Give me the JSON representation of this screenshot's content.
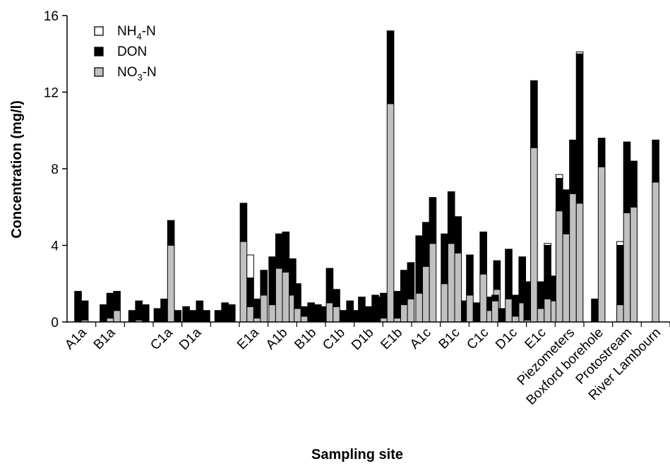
{
  "chart_data": {
    "type": "bar",
    "stacked": true,
    "xlabel": "Sampling site",
    "ylabel": "Concentration (mg/l)",
    "ylim": [
      0,
      16
    ],
    "yticks": [
      0,
      4,
      8,
      12,
      16
    ],
    "grid": false,
    "legend_position": "top-left",
    "legend": [
      {
        "key": "nh4",
        "text": "NH",
        "sub": "4",
        "suffix": "-N",
        "color": "#ffffff"
      },
      {
        "key": "don",
        "text": "DON",
        "sub": "",
        "suffix": "",
        "color": "#000000"
      },
      {
        "key": "no3",
        "text": "NO",
        "sub": "3",
        "suffix": "-N",
        "color": "#c0c0c0"
      }
    ],
    "groups": [
      {
        "label": "A1a",
        "bars": [
          {
            "no3": 0.0,
            "don": 1.6,
            "nh4": 0
          },
          {
            "no3": 0.1,
            "don": 1.0,
            "nh4": 0
          }
        ]
      },
      {
        "label": "B1a",
        "bars": [
          {
            "no3": 0.0,
            "don": 0.9,
            "nh4": 0
          },
          {
            "no3": 0.2,
            "don": 1.3,
            "nh4": 0
          },
          {
            "no3": 0.6,
            "don": 1.0,
            "nh4": 0
          }
        ]
      },
      {
        "label": "",
        "bars": [
          {
            "no3": 0.0,
            "don": 0.6,
            "nh4": 0
          },
          {
            "no3": 0.1,
            "don": 1.0,
            "nh4": 0
          },
          {
            "no3": 0.0,
            "don": 0.9,
            "nh4": 0
          }
        ]
      },
      {
        "label": "C1a",
        "bars": [
          {
            "no3": 0.0,
            "don": 0.7,
            "nh4": 0
          },
          {
            "no3": 0.0,
            "don": 1.2,
            "nh4": 0
          },
          {
            "no3": 4.0,
            "don": 1.3,
            "nh4": 0
          },
          {
            "no3": 0.0,
            "don": 0.6,
            "nh4": 0
          }
        ]
      },
      {
        "label": "D1a",
        "bars": [
          {
            "no3": 0.0,
            "don": 0.8,
            "nh4": 0
          },
          {
            "no3": 0.0,
            "don": 0.6,
            "nh4": 0
          },
          {
            "no3": 0.0,
            "don": 1.1,
            "nh4": 0
          },
          {
            "no3": 0.0,
            "don": 0.6,
            "nh4": 0
          }
        ]
      },
      {
        "label": "",
        "bars": [
          {
            "no3": 0.0,
            "don": 0.6,
            "nh4": 0
          },
          {
            "no3": 0.0,
            "don": 1.0,
            "nh4": 0
          },
          {
            "no3": 0.0,
            "don": 0.9,
            "nh4": 0
          }
        ]
      },
      {
        "label": "E1a",
        "bars": [
          {
            "no3": 4.2,
            "don": 2.0,
            "nh4": 0
          },
          {
            "no3": 0.8,
            "don": 1.5,
            "nh4": 1.2
          },
          {
            "no3": 0.2,
            "don": 1.0,
            "nh4": 0
          },
          {
            "no3": 1.4,
            "don": 1.3,
            "nh4": 0
          }
        ]
      },
      {
        "label": "A1b",
        "bars": [
          {
            "no3": 0.9,
            "don": 2.5,
            "nh4": 0
          },
          {
            "no3": 2.8,
            "don": 1.8,
            "nh4": 0
          },
          {
            "no3": 2.6,
            "don": 2.1,
            "nh4": 0
          },
          {
            "no3": 1.4,
            "don": 1.9,
            "nh4": 0
          }
        ]
      },
      {
        "label": "B1b",
        "bars": [
          {
            "no3": 0.7,
            "don": 1.3,
            "nh4": 0
          },
          {
            "no3": 0.3,
            "don": 0.5,
            "nh4": 0
          },
          {
            "no3": 0.0,
            "don": 1.0,
            "nh4": 0
          },
          {
            "no3": 0.0,
            "don": 0.9,
            "nh4": 0
          },
          {
            "no3": 0.0,
            "don": 0.8,
            "nh4": 0
          }
        ]
      },
      {
        "label": "C1b",
        "bars": [
          {
            "no3": 1.0,
            "don": 1.8,
            "nh4": 0
          },
          {
            "no3": 0.8,
            "don": 0.9,
            "nh4": 0
          },
          {
            "no3": 0.0,
            "don": 0.6,
            "nh4": 0
          },
          {
            "no3": 0.0,
            "don": 1.1,
            "nh4": 0
          }
        ]
      },
      {
        "label": "D1b",
        "bars": [
          {
            "no3": 0.0,
            "don": 0.6,
            "nh4": 0
          },
          {
            "no3": 0.0,
            "don": 1.3,
            "nh4": 0
          },
          {
            "no3": 0.0,
            "don": 0.8,
            "nh4": 0
          },
          {
            "no3": 0.0,
            "don": 1.4,
            "nh4": 0
          },
          {
            "no3": 0.0,
            "don": 1.3,
            "nh4": 0
          }
        ]
      },
      {
        "label": "E1b",
        "bars": [
          {
            "no3": 0.2,
            "don": 1.3,
            "nh4": 0
          },
          {
            "no3": 11.4,
            "don": 3.8,
            "nh4": 0
          },
          {
            "no3": 0.2,
            "don": 1.4,
            "nh4": 0
          },
          {
            "no3": 0.9,
            "don": 1.8,
            "nh4": 0
          },
          {
            "no3": 1.2,
            "don": 1.9,
            "nh4": 0
          }
        ]
      },
      {
        "label": "A1c",
        "bars": [
          {
            "no3": 1.5,
            "don": 3.0,
            "nh4": 0
          },
          {
            "no3": 2.9,
            "don": 2.3,
            "nh4": 0
          },
          {
            "no3": 4.1,
            "don": 2.4,
            "nh4": 0
          }
        ]
      },
      {
        "label": "B1c",
        "bars": [
          {
            "no3": 2.0,
            "don": 2.6,
            "nh4": 0
          },
          {
            "no3": 4.1,
            "don": 2.7,
            "nh4": 0
          },
          {
            "no3": 3.6,
            "don": 1.9,
            "nh4": 0
          },
          {
            "no3": 0.0,
            "don": 1.1,
            "nh4": 0
          }
        ]
      },
      {
        "label": "C1c",
        "bars": [
          {
            "no3": 1.4,
            "don": 2.1,
            "nh4": 0
          },
          {
            "no3": 0.0,
            "don": 1.0,
            "nh4": 0
          },
          {
            "no3": 2.5,
            "don": 2.2,
            "nh4": 0
          },
          {
            "no3": 0.6,
            "don": 0.7,
            "nh4": 0
          },
          {
            "no3": 1.7,
            "don": 1.5,
            "nh4": 0
          }
        ]
      },
      {
        "label": "D1c",
        "bars": [
          {
            "no3": 1.1,
            "don": 0.3,
            "nh4": 0
          },
          {
            "no3": 0.0,
            "don": 0.7,
            "nh4": 0
          },
          {
            "no3": 1.2,
            "don": 2.6,
            "nh4": 0
          },
          {
            "no3": 0.3,
            "don": 1.1,
            "nh4": 0
          },
          {
            "no3": 1.0,
            "don": 2.4,
            "nh4": 0
          },
          {
            "no3": 0.5,
            "don": 1.6,
            "nh4": 0
          }
        ]
      },
      {
        "label": "E1c",
        "bars": [
          {
            "no3": 0.1,
            "don": 1.8,
            "nh4": 0
          },
          {
            "no3": 9.1,
            "don": 3.5,
            "nh4": 0
          },
          {
            "no3": 0.7,
            "don": 1.4,
            "nh4": 0
          },
          {
            "no3": 1.2,
            "don": 2.8,
            "nh4": 0.1
          },
          {
            "no3": 1.1,
            "don": 1.3,
            "nh4": 0
          }
        ]
      },
      {
        "label": "Piezometers",
        "bars": [
          {
            "no3": 5.8,
            "don": 1.7,
            "nh4": 0.2
          },
          {
            "no3": 4.6,
            "don": 2.3,
            "nh4": 0
          },
          {
            "no3": 6.7,
            "don": 2.8,
            "nh4": 0
          },
          {
            "no3": 6.2,
            "don": 7.8,
            "nh4": 0.1
          }
        ]
      },
      {
        "label": "Boxford borehole",
        "bars": [
          {
            "no3": 0.0,
            "don": 1.2,
            "nh4": 0
          },
          {
            "no3": 8.1,
            "don": 1.5,
            "nh4": 0
          }
        ]
      },
      {
        "label": "Protostream",
        "bars": [
          {
            "no3": 0.9,
            "don": 3.1,
            "nh4": 0.2
          },
          {
            "no3": 5.7,
            "don": 3.7,
            "nh4": 0
          },
          {
            "no3": 6.0,
            "don": 2.4,
            "nh4": 0
          }
        ]
      },
      {
        "label": "River Lambourn",
        "bars": [
          {
            "no3": 7.3,
            "don": 2.2,
            "nh4": 0
          }
        ]
      }
    ]
  }
}
